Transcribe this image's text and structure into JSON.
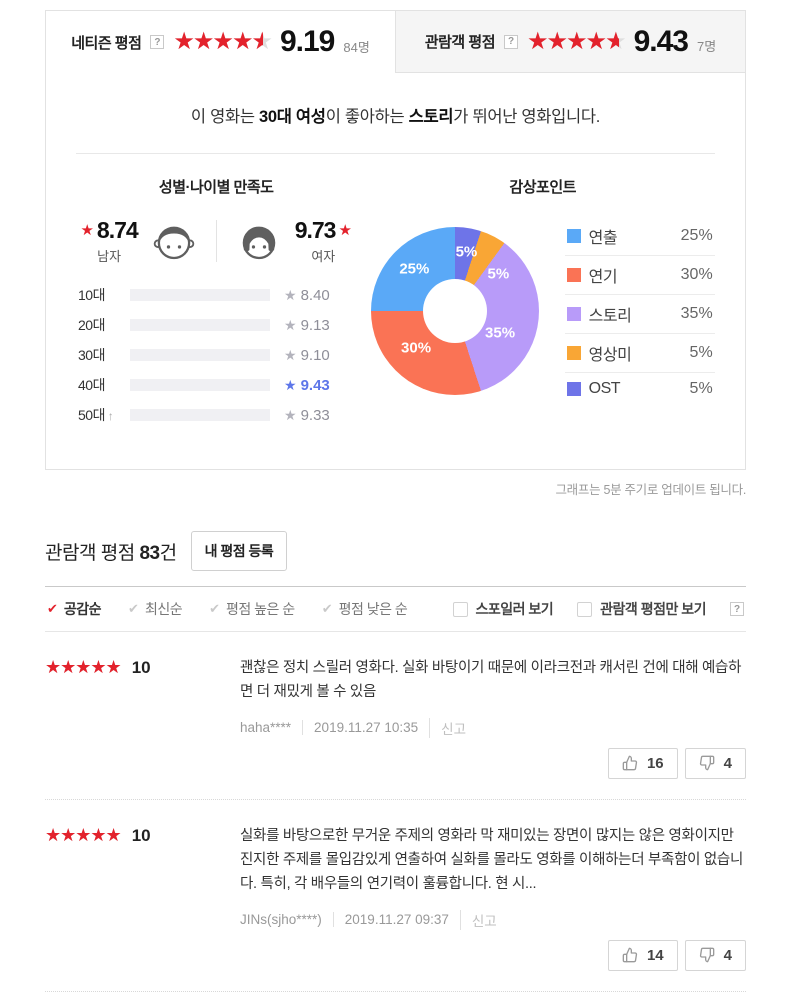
{
  "icons": {
    "star": "★",
    "stars5": "★★★★★",
    "check": "✔",
    "help": "?",
    "arrow_up": "↑"
  },
  "header": {
    "netizen": {
      "label": "네티즌 평점",
      "score": "9.19",
      "count": "84명",
      "stars_percent": 91.9
    },
    "audience": {
      "label": "관람객 평점",
      "score": "9.43",
      "count": "7명",
      "stars_percent": 94.3
    }
  },
  "summary": {
    "parts": [
      {
        "text": "이 영화는 ",
        "bold": false
      },
      {
        "text": "30대 여성",
        "bold": true
      },
      {
        "text": "이 좋아하는 ",
        "bold": false
      },
      {
        "text": "스토리",
        "bold": true
      },
      {
        "text": "가 뛰어난 영화입니다.",
        "bold": false
      }
    ]
  },
  "chart_data": [
    {
      "type": "bar",
      "title": "성별·나이별 만족도",
      "categories": [
        "10대",
        "20대",
        "30대",
        "40대",
        "50대"
      ],
      "values": [
        8.4,
        9.13,
        9.1,
        9.43,
        9.33
      ],
      "value_labels": [
        "8.40",
        "9.13",
        "9.10",
        "9.43",
        "9.33"
      ],
      "xlim": [
        0,
        10
      ],
      "highlight_index": 3,
      "arrow_index": 4,
      "bar_color": "#a8b4da",
      "highlight_color": "#5d76e9",
      "male_score": "8.74",
      "male_label": "남자",
      "female_score": "9.73",
      "female_label": "여자"
    },
    {
      "type": "pie",
      "title": "감상포인트",
      "slices": [
        {
          "label": "연출",
          "value": 25,
          "display": "25%",
          "color": "#5aa9f7"
        },
        {
          "label": "연기",
          "value": 30,
          "display": "30%",
          "color": "#fa7355"
        },
        {
          "label": "스토리",
          "value": 35,
          "display": "35%",
          "color": "#b89bf9"
        },
        {
          "label": "영상미",
          "value": 5,
          "display": "5%",
          "color": "#f9a635"
        },
        {
          "label": "OST",
          "value": 5,
          "display": "5%",
          "color": "#6e74e8"
        }
      ],
      "draw_order_clockwise_from_top": [
        4,
        3,
        2,
        1,
        0
      ],
      "legend_position": "right"
    }
  ],
  "footnote": "그래프는 5분 주기로 업데이트 됩니다.",
  "reviews_header": {
    "title": "관람객 평점",
    "count": "83",
    "suffix": "건",
    "register_button": "내 평점 등록"
  },
  "filters": {
    "sorts": [
      {
        "label": "공감순",
        "active": true
      },
      {
        "label": "최신순",
        "active": false
      },
      {
        "label": "평점 높은 순",
        "active": false
      },
      {
        "label": "평점 낮은 순",
        "active": false
      }
    ],
    "checkboxes": [
      {
        "label": "스포일러 보기",
        "checked": false,
        "help": false
      },
      {
        "label": "관람객 평점만 보기",
        "checked": false,
        "help": true
      }
    ]
  },
  "reviews": [
    {
      "score": "10",
      "stars_percent": 100,
      "text": "괜찮은 정치 스릴러 영화다. 실화 바탕이기 때문에 이라크전과 캐서린 건에 대해 예습하면 더 재밌게 볼 수 있음",
      "author": "haha****",
      "date": "2019.11.27 10:35",
      "report": "신고",
      "up": "16",
      "down": "4"
    },
    {
      "score": "10",
      "stars_percent": 100,
      "text": "실화를 바탕으로한 무거운 주제의 영화라 막 재미있는 장면이 많지는 않은 영화이지만 진지한 주제를 몰입감있게 연출하여 실화를 몰라도 영화를 이해하는더 부족함이 없습니다. 특히, 각 배우들의 연기력이 훌륭합니다. 현 시...",
      "author": "JINs(sjho****)",
      "date": "2019.11.27 09:37",
      "report": "신고",
      "up": "14",
      "down": "4"
    }
  ]
}
